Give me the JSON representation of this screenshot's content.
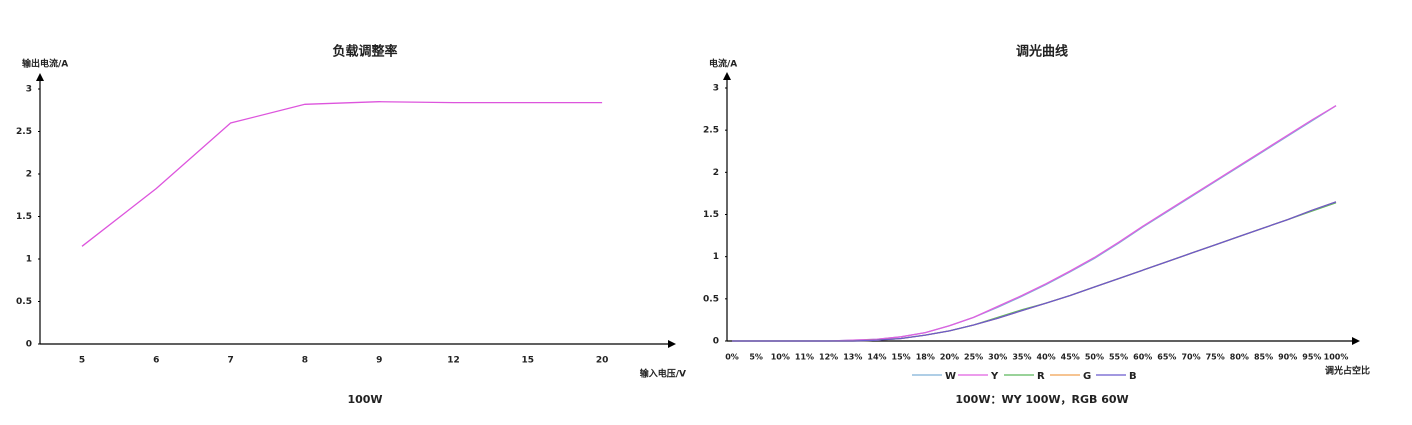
{
  "chart_data": [
    {
      "type": "line",
      "title": "负载调整率",
      "subtitle": "100W",
      "y_label": "输出电流/A",
      "x_label": "输入电压/V",
      "categories": [
        "5",
        "6",
        "7",
        "8",
        "9",
        "12",
        "15",
        "20"
      ],
      "series": [
        {
          "name": null,
          "color": "#dd55dd",
          "values": [
            1.15,
            1.83,
            2.6,
            2.82,
            2.85,
            2.84,
            2.84,
            2.84
          ]
        }
      ],
      "ylim": [
        0,
        3
      ],
      "yticks": [
        0,
        0.5,
        1,
        1.5,
        2,
        2.5,
        3
      ]
    },
    {
      "type": "line",
      "title": "调光曲线",
      "subtitle": "100W：WY 100W，RGB 60W",
      "y_label": "电流/A",
      "x_label": "调光占空比",
      "categories": [
        "0%",
        "5%",
        "10%",
        "11%",
        "12%",
        "13%",
        "14%",
        "15%",
        "18%",
        "20%",
        "25%",
        "30%",
        "35%",
        "40%",
        "45%",
        "50%",
        "55%",
        "60%",
        "65%",
        "70%",
        "75%",
        "80%",
        "85%",
        "90%",
        "95%",
        "100%"
      ],
      "series": [
        {
          "name": "W",
          "color": "#7fb0d8",
          "values": [
            0,
            0,
            0,
            0,
            0,
            0.01,
            0.02,
            0.05,
            0.1,
            0.18,
            0.28,
            0.4,
            0.53,
            0.67,
            0.82,
            0.98,
            1.16,
            1.35,
            1.53,
            1.71,
            1.89,
            2.07,
            2.25,
            2.43,
            2.61,
            2.79
          ]
        },
        {
          "name": "Y",
          "color": "#e060e0",
          "values": [
            0,
            0,
            0,
            0,
            0,
            0.01,
            0.02,
            0.05,
            0.1,
            0.18,
            0.28,
            0.41,
            0.54,
            0.68,
            0.83,
            0.99,
            1.17,
            1.36,
            1.54,
            1.72,
            1.9,
            2.08,
            2.26,
            2.44,
            2.62,
            2.79
          ]
        },
        {
          "name": "R",
          "color": "#5cb85c",
          "values": [
            0,
            0,
            0,
            0,
            0,
            0,
            0.01,
            0.03,
            0.07,
            0.12,
            0.19,
            0.28,
            0.37,
            0.45,
            0.54,
            0.64,
            0.74,
            0.84,
            0.94,
            1.04,
            1.14,
            1.24,
            1.34,
            1.44,
            1.54,
            1.64
          ]
        },
        {
          "name": "G",
          "color": "#f0a050",
          "values": [
            0,
            0,
            0,
            0,
            0,
            0,
            0.01,
            0.03,
            0.07,
            0.12,
            0.19,
            0.27,
            0.36,
            0.45,
            0.54,
            0.64,
            0.74,
            0.84,
            0.94,
            1.04,
            1.14,
            1.24,
            1.34,
            1.44,
            1.55,
            1.65
          ]
        },
        {
          "name": "B",
          "color": "#6a5acd",
          "values": [
            0,
            0,
            0,
            0,
            0,
            0,
            0.01,
            0.03,
            0.07,
            0.12,
            0.19,
            0.27,
            0.36,
            0.45,
            0.54,
            0.64,
            0.74,
            0.84,
            0.94,
            1.04,
            1.14,
            1.24,
            1.34,
            1.44,
            1.55,
            1.65
          ]
        }
      ],
      "ylim": [
        0,
        3
      ],
      "yticks": [
        0,
        0.5,
        1,
        1.5,
        2,
        2.5,
        3
      ],
      "legend": "bottom"
    }
  ]
}
